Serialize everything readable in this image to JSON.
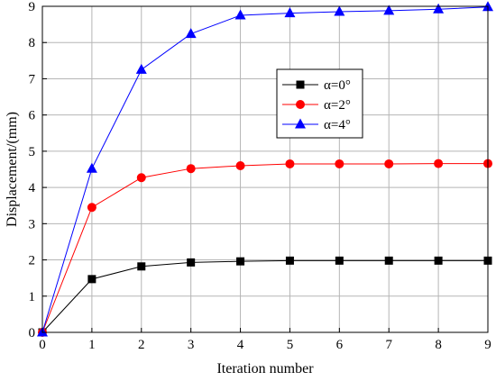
{
  "chart_data": {
    "type": "line",
    "title": "",
    "xlabel": "Iteration number",
    "ylabel": "Displacement/(mm)",
    "xlim": [
      0,
      9
    ],
    "ylim": [
      0,
      9
    ],
    "x": [
      0,
      1,
      2,
      3,
      4,
      5,
      6,
      7,
      8,
      9
    ],
    "x_ticks": [
      "0",
      "1",
      "2",
      "3",
      "4",
      "5",
      "6",
      "7",
      "8",
      "9"
    ],
    "y_ticks": [
      "0",
      "1",
      "2",
      "3",
      "4",
      "5",
      "6",
      "7",
      "8",
      "9"
    ],
    "grid": true,
    "legend_position": "top-right",
    "series": [
      {
        "name": "α=0°",
        "color": "#000000",
        "marker": "square",
        "values": [
          0,
          1.47,
          1.82,
          1.93,
          1.96,
          1.98,
          1.98,
          1.98,
          1.98,
          1.98
        ]
      },
      {
        "name": "α=2°",
        "color": "#ff0000",
        "marker": "circle",
        "values": [
          0,
          3.45,
          4.27,
          4.52,
          4.6,
          4.65,
          4.65,
          4.65,
          4.66,
          4.66
        ]
      },
      {
        "name": "α=4°",
        "color": "#0000ff",
        "marker": "triangle",
        "values": [
          0,
          4.52,
          7.25,
          8.24,
          8.75,
          8.81,
          8.85,
          8.88,
          8.92,
          8.98
        ]
      }
    ]
  }
}
